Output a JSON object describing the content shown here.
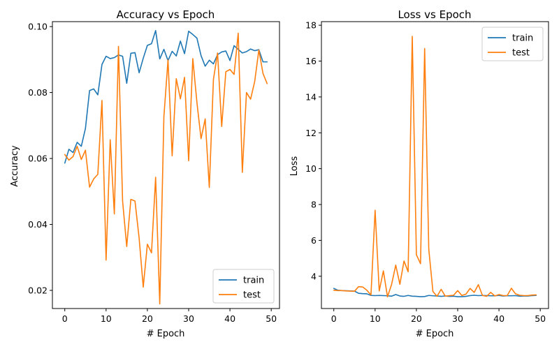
{
  "chart_data": [
    {
      "type": "line",
      "title": "Accuracy vs Epoch",
      "xlabel": "# Epoch",
      "ylabel": "Accuracy",
      "xlim": [
        -3,
        52
      ],
      "ylim": [
        0.0145,
        0.1015
      ],
      "xticks": [
        0,
        10,
        20,
        30,
        40,
        50
      ],
      "yticks": [
        0.02,
        0.04,
        0.06,
        0.08,
        0.1
      ],
      "ytick_labels": [
        "0.02",
        "0.04",
        "0.06",
        "0.08",
        "0.10"
      ],
      "legend_position": "bottom-right",
      "grid": false,
      "series": [
        {
          "name": "train",
          "color": "#1f77b4",
          "x": [
            0,
            1,
            2,
            3,
            4,
            5,
            6,
            7,
            8,
            9,
            10,
            11,
            12,
            13,
            14,
            15,
            16,
            17,
            18,
            19,
            20,
            21,
            22,
            23,
            24,
            25,
            26,
            27,
            28,
            29,
            30,
            31,
            32,
            33,
            34,
            35,
            36,
            37,
            38,
            39,
            40,
            41,
            42,
            43,
            44,
            45,
            46,
            47,
            48,
            49
          ],
          "values": [
            0.0586,
            0.0628,
            0.0618,
            0.0649,
            0.0637,
            0.0691,
            0.0806,
            0.0811,
            0.0793,
            0.0885,
            0.091,
            0.0903,
            0.0906,
            0.0914,
            0.091,
            0.0828,
            0.0919,
            0.0921,
            0.086,
            0.0904,
            0.0943,
            0.0948,
            0.0988,
            0.0902,
            0.0931,
            0.0897,
            0.0925,
            0.0911,
            0.0956,
            0.0918,
            0.0986,
            0.0976,
            0.0965,
            0.0912,
            0.088,
            0.0898,
            0.0887,
            0.0915,
            0.0923,
            0.0926,
            0.0897,
            0.0942,
            0.0931,
            0.092,
            0.0924,
            0.0932,
            0.0927,
            0.093,
            0.0893,
            0.0893
          ]
        },
        {
          "name": "test",
          "color": "#ff7f0e",
          "x": [
            0,
            1,
            2,
            3,
            4,
            5,
            6,
            7,
            8,
            9,
            10,
            11,
            12,
            13,
            14,
            15,
            16,
            17,
            18,
            19,
            20,
            21,
            22,
            23,
            24,
            25,
            26,
            27,
            28,
            29,
            30,
            31,
            32,
            33,
            34,
            35,
            36,
            37,
            38,
            39,
            40,
            41,
            42,
            43,
            44,
            45,
            46,
            47,
            48,
            49
          ],
          "values": [
            0.0612,
            0.0595,
            0.0606,
            0.0637,
            0.0597,
            0.0625,
            0.0513,
            0.0538,
            0.0552,
            0.0776,
            0.0292,
            0.0657,
            0.0432,
            0.094,
            0.0471,
            0.0333,
            0.0476,
            0.0471,
            0.0359,
            0.021,
            0.034,
            0.0314,
            0.0543,
            0.0159,
            0.0727,
            0.0899,
            0.0608,
            0.0842,
            0.0781,
            0.0846,
            0.0593,
            0.0903,
            0.077,
            0.066,
            0.072,
            0.0512,
            0.084,
            0.092,
            0.0697,
            0.0863,
            0.087,
            0.0855,
            0.098,
            0.0558,
            0.08,
            0.078,
            0.0834,
            0.0929,
            0.0858,
            0.0827
          ]
        }
      ]
    },
    {
      "type": "line",
      "title": "Loss vs Epoch",
      "xlabel": "# Epoch",
      "ylabel": "Loss",
      "xlim": [
        -3,
        52
      ],
      "ylim": [
        2.2,
        18.2
      ],
      "xticks": [
        0,
        10,
        20,
        30,
        40,
        50
      ],
      "yticks": [
        4,
        6,
        8,
        10,
        12,
        14,
        16,
        18
      ],
      "ytick_labels": [
        "4",
        "6",
        "8",
        "10",
        "12",
        "14",
        "16",
        "18"
      ],
      "legend_position": "top-right",
      "grid": false,
      "series": [
        {
          "name": "train",
          "color": "#1f77b4",
          "x": [
            0,
            1,
            2,
            3,
            4,
            5,
            6,
            7,
            8,
            9,
            10,
            11,
            12,
            13,
            14,
            15,
            16,
            17,
            18,
            19,
            20,
            21,
            22,
            23,
            24,
            25,
            26,
            27,
            28,
            29,
            30,
            31,
            32,
            33,
            34,
            35,
            36,
            37,
            38,
            39,
            40,
            41,
            42,
            43,
            44,
            45,
            46,
            47,
            48,
            49
          ],
          "values": [
            3.32,
            3.22,
            3.2,
            3.19,
            3.18,
            3.17,
            3.05,
            3.03,
            3.02,
            2.93,
            2.92,
            2.93,
            2.92,
            2.91,
            2.89,
            2.98,
            2.9,
            2.88,
            2.93,
            2.89,
            2.88,
            2.86,
            2.87,
            2.93,
            2.91,
            2.9,
            2.88,
            2.9,
            2.88,
            2.89,
            2.86,
            2.86,
            2.88,
            2.92,
            2.94,
            2.92,
            2.93,
            2.92,
            2.91,
            2.91,
            2.93,
            2.9,
            2.91,
            2.91,
            2.92,
            2.89,
            2.9,
            2.9,
            2.92,
            2.93
          ]
        },
        {
          "name": "test",
          "color": "#ff7f0e",
          "x": [
            0,
            1,
            2,
            3,
            4,
            5,
            6,
            7,
            8,
            9,
            10,
            11,
            12,
            13,
            14,
            15,
            16,
            17,
            18,
            19,
            20,
            21,
            22,
            23,
            24,
            25,
            26,
            27,
            28,
            29,
            30,
            31,
            32,
            33,
            34,
            35,
            36,
            37,
            38,
            39,
            40,
            41,
            42,
            43,
            44,
            45,
            46,
            47,
            48,
            49
          ],
          "values": [
            3.22,
            3.2,
            3.2,
            3.18,
            3.17,
            3.16,
            3.42,
            3.4,
            3.22,
            2.96,
            7.68,
            3.18,
            4.3,
            2.85,
            3.55,
            4.62,
            3.55,
            4.85,
            4.25,
            17.38,
            5.2,
            4.7,
            16.7,
            5.5,
            3.15,
            2.88,
            3.27,
            2.89,
            2.92,
            2.94,
            3.2,
            2.93,
            3.0,
            3.32,
            3.1,
            3.53,
            2.93,
            2.88,
            3.1,
            2.9,
            2.98,
            2.92,
            2.92,
            3.33,
            3.02,
            2.94,
            2.92,
            2.92,
            2.95,
            2.96
          ]
        }
      ]
    }
  ]
}
